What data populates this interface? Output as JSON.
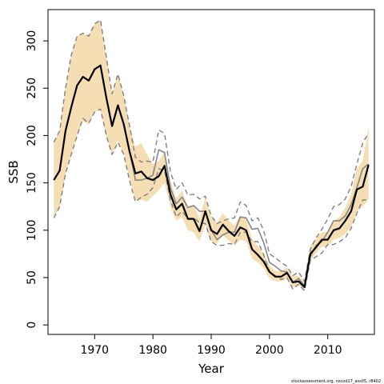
{
  "chart_data": {
    "type": "line",
    "title": "",
    "xlabel": "Year",
    "ylabel": "SSB",
    "xlim": [
      1962,
      2018
    ],
    "ylim": [
      -10,
      333
    ],
    "xticks": [
      1970,
      1980,
      1990,
      2000,
      2010
    ],
    "yticks": [
      0,
      50,
      100,
      150,
      200,
      250,
      300
    ],
    "grid": false,
    "legend": "none",
    "footnote": "stockassessment.org, nscod17_ass05, r8402",
    "colors": {
      "band": "#f5deb3",
      "estimate": "#000000",
      "alt_estimate": "#808080",
      "alt_bounds": "#808080"
    },
    "x": [
      1963,
      1964,
      1965,
      1966,
      1967,
      1968,
      1969,
      1970,
      1971,
      1972,
      1973,
      1974,
      1975,
      1976,
      1977,
      1978,
      1979,
      1980,
      1981,
      1982,
      1983,
      1984,
      1985,
      1986,
      1987,
      1988,
      1989,
      1990,
      1991,
      1992,
      1993,
      1994,
      1995,
      1996,
      1997,
      1998,
      1999,
      2000,
      2001,
      2002,
      2003,
      2004,
      2005,
      2006,
      2007,
      2008,
      2009,
      2010,
      2011,
      2012,
      2013,
      2014,
      2015,
      2016,
      2017
    ],
    "series": [
      {
        "name": "",
        "role": "estimate",
        "values": [
          153,
          163,
          205,
          230,
          253,
          262,
          258,
          270,
          274,
          240,
          210,
          232,
          212,
          183,
          160,
          162,
          155,
          153,
          157,
          168,
          138,
          122,
          128,
          112,
          112,
          99,
          120,
          100,
          96,
          106,
          99,
          94,
          103,
          100,
          80,
          74,
          67,
          56,
          51,
          51,
          55,
          45,
          46,
          40,
          75,
          82,
          90,
          90,
          100,
          102,
          110,
          120,
          143,
          146,
          169
        ]
      },
      {
        "name": "",
        "role": "lower-bound",
        "values": [
          113,
          125,
          160,
          180,
          200,
          215,
          212,
          225,
          228,
          200,
          180,
          195,
          180,
          155,
          132,
          132,
          130,
          136,
          142,
          150,
          124,
          110,
          114,
          100,
          98,
          88,
          106,
          88,
          86,
          95,
          89,
          84,
          90,
          88,
          70,
          66,
          60,
          49,
          46,
          46,
          49,
          40,
          42,
          36,
          68,
          76,
          83,
          83,
          90,
          92,
          96,
          104,
          120,
          125,
          132
        ]
      },
      {
        "name": "",
        "role": "upper-bound",
        "values": [
          193,
          205,
          250,
          285,
          305,
          308,
          305,
          318,
          322,
          283,
          244,
          265,
          242,
          210,
          188,
          192,
          180,
          170,
          173,
          183,
          152,
          134,
          142,
          125,
          127,
          112,
          135,
          113,
          108,
          118,
          110,
          105,
          116,
          112,
          91,
          83,
          75,
          63,
          57,
          57,
          61,
          51,
          52,
          45,
          83,
          91,
          98,
          98,
          110,
          114,
          124,
          138,
          165,
          173,
          209
        ]
      },
      {
        "name": "",
        "role": "alt-estimate",
        "values": [
          153,
          163,
          205,
          230,
          253,
          262,
          258,
          270,
          274,
          240,
          210,
          232,
          212,
          183,
          153,
          153,
          155,
          158,
          185,
          182,
          145,
          128,
          135,
          124,
          126,
          120,
          120,
          100,
          90,
          95,
          98,
          98,
          114,
          113,
          101,
          102,
          87,
          66,
          62,
          57,
          56,
          45,
          49,
          41,
          72,
          84,
          88,
          98,
          110,
          110,
          115,
          127,
          145,
          165,
          170
        ]
      },
      {
        "name": "",
        "role": "alt-lower",
        "values": [
          113,
          125,
          160,
          180,
          200,
          218,
          213,
          225,
          228,
          200,
          180,
          193,
          180,
          152,
          130,
          135,
          138,
          145,
          165,
          163,
          132,
          114,
          120,
          112,
          113,
          108,
          107,
          88,
          84,
          84,
          86,
          85,
          98,
          98,
          88,
          88,
          74,
          56,
          52,
          48,
          50,
          38,
          43,
          36,
          68,
          72,
          76,
          85,
          85,
          88,
          92,
          102,
          118,
          132,
          132
        ]
      },
      {
        "name": "",
        "role": "alt-upper",
        "values": [
          193,
          205,
          250,
          285,
          305,
          308,
          305,
          318,
          322,
          283,
          244,
          265,
          242,
          210,
          177,
          172,
          173,
          172,
          206,
          202,
          162,
          143,
          150,
          137,
          138,
          133,
          136,
          115,
          107,
          110,
          112,
          113,
          130,
          126,
          110,
          113,
          100,
          75,
          71,
          66,
          62,
          52,
          56,
          46,
          80,
          92,
          101,
          112,
          125,
          127,
          133,
          146,
          170,
          192,
          203
        ]
      }
    ]
  }
}
